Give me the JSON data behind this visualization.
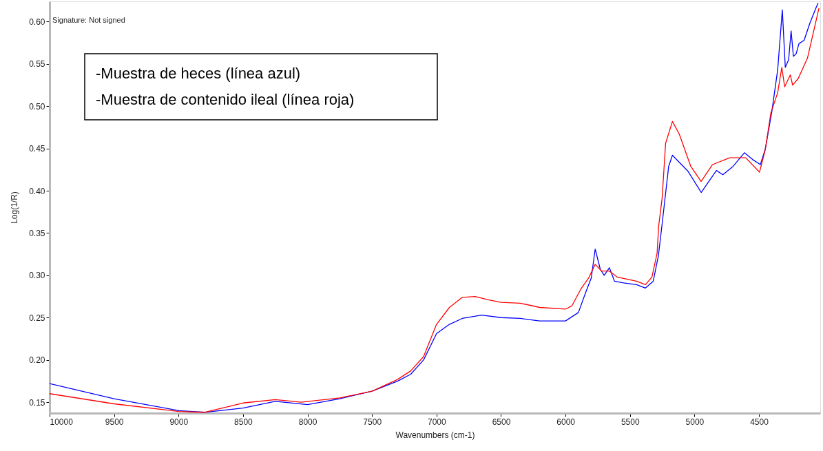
{
  "chart_data": {
    "type": "line",
    "xlabel": "Wavenumbers (cm-1)",
    "ylabel": "Log(1/R)",
    "annotations": [
      "Signature: Not signed",
      "-Muestra de heces (línea azul)",
      "-Muestra de contenido  ileal (línea roja)"
    ],
    "xlim": [
      10000,
      4025
    ],
    "ylim": [
      0.137,
      0.624
    ],
    "xticks": [
      10000,
      9500,
      9000,
      8500,
      8000,
      7500,
      7000,
      6500,
      6000,
      5500,
      5000,
      4500
    ],
    "yticks": [
      0.15,
      {
        "value": 0.2,
        "label": "0.20"
      },
      0.25,
      {
        "value": 0.3,
        "label": "0.30"
      },
      0.35,
      {
        "value": 0.4,
        "label": "0.40"
      },
      0.45,
      {
        "value": 0.5,
        "label": "0.50"
      },
      0.55,
      {
        "value": 0.6,
        "label": "0.60"
      }
    ],
    "grid": false,
    "line_style": "solid",
    "marker": "none",
    "series": [
      {
        "color": "#0000ff",
        "x": [
          10000,
          9500,
          9000,
          8800,
          8500,
          8250,
          8000,
          7750,
          7500,
          7300,
          7200,
          7100,
          7000,
          6900,
          6800,
          6650,
          6500,
          6350,
          6200,
          6000,
          5900,
          5850,
          5800,
          5770,
          5730,
          5700,
          5660,
          5620,
          5550,
          5450,
          5380,
          5320,
          5280,
          5250,
          5200,
          5171,
          5050,
          4948,
          4830,
          4780,
          4700,
          4613,
          4550,
          4489,
          4450,
          4400,
          4355,
          4319,
          4296,
          4270,
          4251,
          4233,
          4212,
          4190,
          4150,
          4106,
          4056,
          4041
        ],
        "values": [
          0.172,
          0.154,
          0.14,
          0.138,
          0.143,
          0.151,
          0.147,
          0.154,
          0.163,
          0.175,
          0.183,
          0.2,
          0.231,
          0.242,
          0.249,
          0.253,
          0.25,
          0.249,
          0.246,
          0.246,
          0.256,
          0.277,
          0.297,
          0.331,
          0.307,
          0.3,
          0.309,
          0.293,
          0.291,
          0.289,
          0.285,
          0.293,
          0.323,
          0.362,
          0.429,
          0.442,
          0.423,
          0.398,
          0.424,
          0.419,
          0.429,
          0.445,
          0.437,
          0.431,
          0.45,
          0.494,
          0.543,
          0.614,
          0.546,
          0.555,
          0.589,
          0.559,
          0.562,
          0.574,
          0.578,
          0.598,
          0.617,
          0.622
        ]
      },
      {
        "color": "#ff0000",
        "x": [
          10000,
          9500,
          9000,
          8800,
          8500,
          8250,
          8050,
          7750,
          7500,
          7300,
          7200,
          7100,
          7000,
          6900,
          6800,
          6700,
          6600,
          6500,
          6350,
          6200,
          6000,
          5950,
          5880,
          5820,
          5770,
          5720,
          5660,
          5600,
          5450,
          5380,
          5330,
          5290,
          5278,
          5251,
          5224,
          5171,
          5118,
          5029,
          4949,
          4860,
          4727,
          4603,
          4496,
          4452,
          4408,
          4355,
          4323,
          4301,
          4257,
          4239,
          4195,
          4124,
          4035
        ],
        "values": [
          0.16,
          0.148,
          0.139,
          0.138,
          0.149,
          0.153,
          0.15,
          0.155,
          0.163,
          0.177,
          0.187,
          0.204,
          0.242,
          0.262,
          0.274,
          0.275,
          0.271,
          0.268,
          0.267,
          0.262,
          0.26,
          0.264,
          0.284,
          0.297,
          0.313,
          0.305,
          0.305,
          0.298,
          0.293,
          0.289,
          0.298,
          0.326,
          0.358,
          0.391,
          0.456,
          0.482,
          0.467,
          0.429,
          0.411,
          0.431,
          0.439,
          0.439,
          0.422,
          0.448,
          0.492,
          0.516,
          0.546,
          0.523,
          0.537,
          0.525,
          0.533,
          0.557,
          0.616
        ]
      }
    ]
  }
}
